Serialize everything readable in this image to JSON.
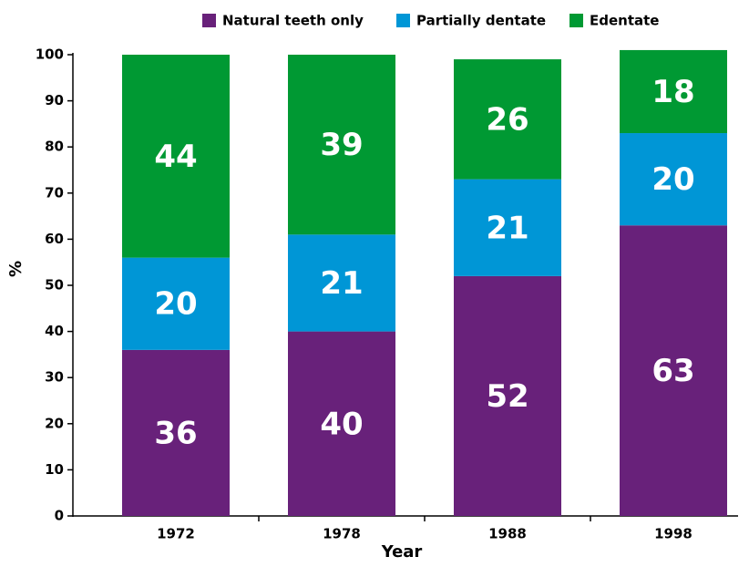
{
  "chart_data": {
    "type": "stacked_bar",
    "x_label": "Year",
    "y_label": "%",
    "categories": [
      "1972",
      "1978",
      "1988",
      "1998"
    ],
    "series": [
      {
        "name": "Natural teeth only",
        "color": "#68217a",
        "values": [
          36,
          40,
          52,
          63
        ]
      },
      {
        "name": "Partially dentate",
        "color": "#0096d6",
        "values": [
          20,
          21,
          21,
          20
        ]
      },
      {
        "name": "Edentate",
        "color": "#009933",
        "values": [
          44,
          39,
          26,
          18
        ]
      }
    ],
    "ylim": [
      0,
      100
    ],
    "yticks": [
      0,
      10,
      20,
      30,
      40,
      50,
      60,
      70,
      80,
      90,
      100
    ],
    "legend": "top"
  }
}
